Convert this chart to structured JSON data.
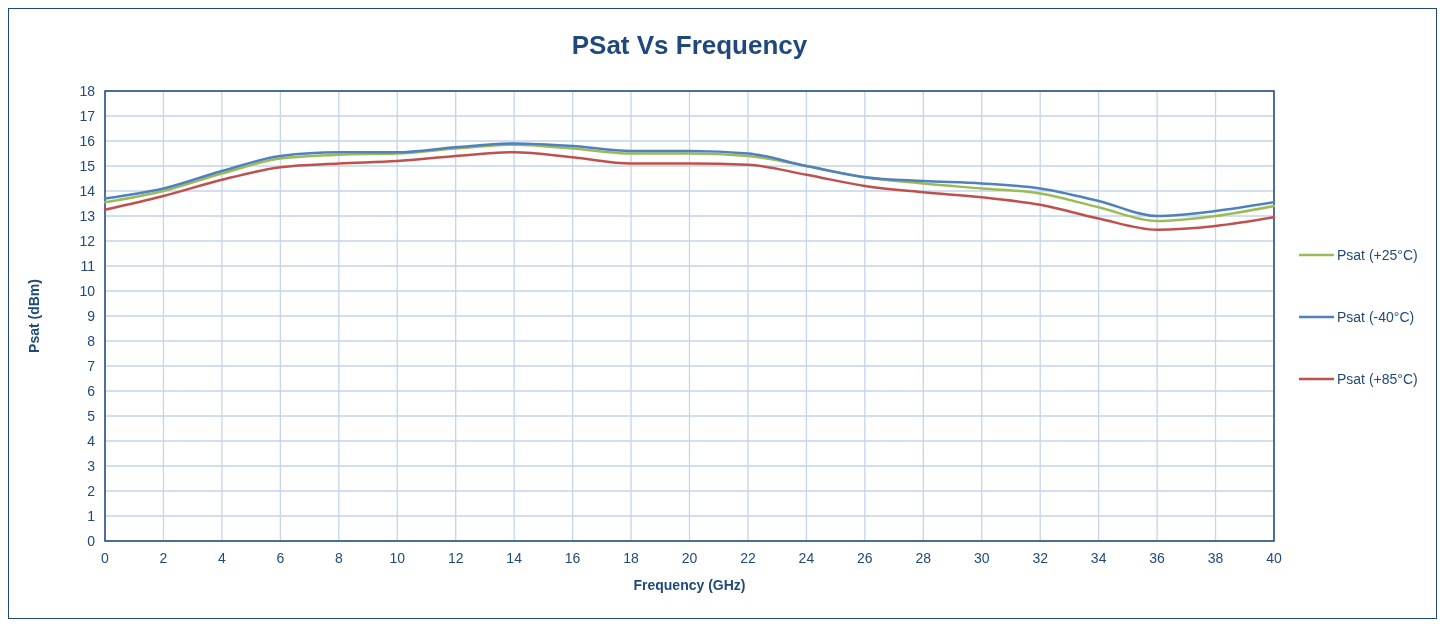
{
  "chart_data": {
    "type": "line",
    "title": "PSat Vs Frequency",
    "xlabel": "Frequency (GHz)",
    "ylabel": "Psat (dBm)",
    "x": [
      0,
      2,
      4,
      6,
      8,
      10,
      12,
      14,
      16,
      18,
      20,
      22,
      24,
      26,
      28,
      30,
      32,
      34,
      36,
      38,
      40
    ],
    "series": [
      {
        "name": "Psat (+25°C)",
        "color": "#9bbb59",
        "values": [
          13.55,
          14.0,
          14.7,
          15.3,
          15.45,
          15.5,
          15.7,
          15.85,
          15.7,
          15.5,
          15.5,
          15.4,
          15.0,
          14.55,
          14.3,
          14.1,
          13.9,
          13.35,
          12.8,
          13.0,
          13.4
        ]
      },
      {
        "name": "Psat (-40°C)",
        "color": "#4f81bd",
        "values": [
          13.7,
          14.1,
          14.8,
          15.4,
          15.55,
          15.55,
          15.75,
          15.9,
          15.8,
          15.6,
          15.6,
          15.5,
          15.0,
          14.55,
          14.4,
          14.3,
          14.1,
          13.6,
          13.0,
          13.2,
          13.55
        ]
      },
      {
        "name": "Psat (+85°C)",
        "color": "#c0504d",
        "values": [
          13.25,
          13.8,
          14.45,
          14.95,
          15.1,
          15.2,
          15.4,
          15.55,
          15.35,
          15.1,
          15.1,
          15.05,
          14.65,
          14.2,
          13.95,
          13.75,
          13.45,
          12.9,
          12.45,
          12.6,
          12.95
        ]
      }
    ],
    "xlim": [
      0,
      40
    ],
    "xticks": [
      0,
      2,
      4,
      6,
      8,
      10,
      12,
      14,
      16,
      18,
      20,
      22,
      24,
      26,
      28,
      30,
      32,
      34,
      36,
      38,
      40
    ],
    "ylim": [
      0,
      18
    ],
    "yticks": [
      0,
      1,
      2,
      3,
      4,
      5,
      6,
      7,
      8,
      9,
      10,
      11,
      12,
      13,
      14,
      15,
      16,
      17,
      18
    ],
    "grid": true,
    "legend": "right",
    "marker": "none",
    "line_style": "solid"
  }
}
